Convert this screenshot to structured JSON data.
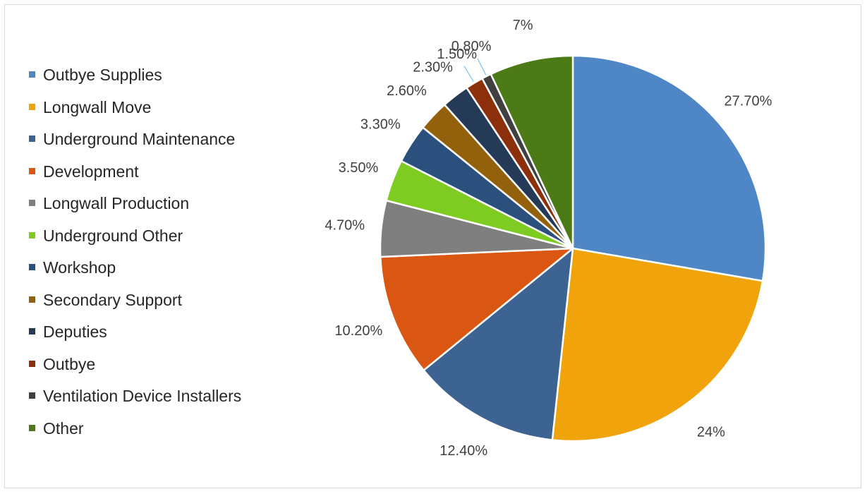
{
  "chart_data": {
    "type": "pie",
    "title": "",
    "legend_position": "left",
    "categories": [
      "Outbye Supplies",
      "Longwall Move",
      "Underground Maintenance",
      "Development",
      "Longwall Production",
      "Underground Other",
      "Workshop",
      "Secondary Support",
      "Deputies",
      "Outbye",
      "Ventilation Device Installers",
      "Other"
    ],
    "values": [
      27.7,
      24,
      12.4,
      10.2,
      4.7,
      3.5,
      3.3,
      2.6,
      2.3,
      1.5,
      0.8,
      7
    ],
    "data_labels": [
      "27.70%",
      "24%",
      "12.40%",
      "10.20%",
      "4.70%",
      "3.50%",
      "3.30%",
      "2.60%",
      "2.30%",
      "1.50%",
      "0.80%",
      "7%"
    ],
    "colors": [
      "#4f86c6",
      "#f0a30a",
      "#3c6391",
      "#d95712",
      "#7f7f7f",
      "#7ecc22",
      "#2c507d",
      "#93610c",
      "#243a57",
      "#8c2f0b",
      "#404040",
      "#4b7a16"
    ],
    "leader_line_color": "#7fc3e8"
  }
}
